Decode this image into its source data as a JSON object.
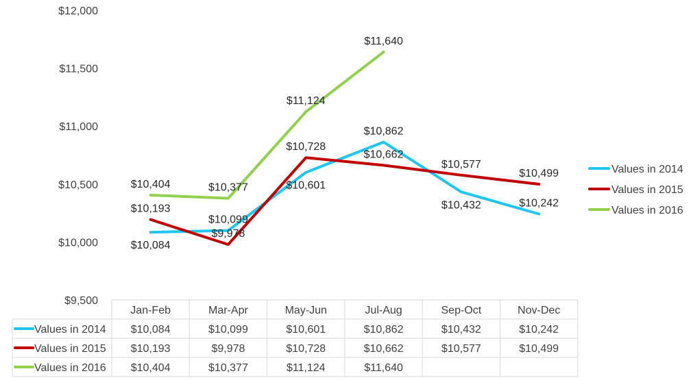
{
  "chart_data": {
    "type": "line",
    "title": "",
    "xlabel": "",
    "ylabel": "",
    "categories": [
      "Jan-Feb",
      "Mar-Apr",
      "May-Jun",
      "Jul-Aug",
      "Sep-Oct",
      "Nov-Dec"
    ],
    "ylim": [
      9500,
      12000
    ],
    "yticks": [
      9500,
      10000,
      10500,
      11000,
      11500,
      12000
    ],
    "ytick_labels": [
      "$9,500",
      "$10,000",
      "$10,500",
      "$11,000",
      "$11,500",
      "$12,000"
    ],
    "grid": false,
    "legend_position": "right",
    "data_table": true,
    "series": [
      {
        "name": "Values in 2014",
        "color": "#1fc7ef",
        "values": [
          10084,
          10099,
          10601,
          10862,
          10432,
          10242
        ],
        "labels": [
          "$10,084",
          "$10,099",
          "$10,601",
          "$10,862",
          "$10,432",
          "$10,242"
        ]
      },
      {
        "name": "Values in 2015",
        "color": "#c00000",
        "values": [
          10193,
          9978,
          10728,
          10662,
          10577,
          10499
        ],
        "labels": [
          "$10,193",
          "$9,978",
          "$10,728",
          "$10,662",
          "$10,577",
          "$10,499"
        ]
      },
      {
        "name": "Values in 2016",
        "color": "#92d050",
        "values": [
          10404,
          10377,
          11124,
          11640,
          null,
          null
        ],
        "labels": [
          "$10,404",
          "$10,377",
          "$11,124",
          "$11,640",
          "",
          ""
        ]
      }
    ]
  }
}
